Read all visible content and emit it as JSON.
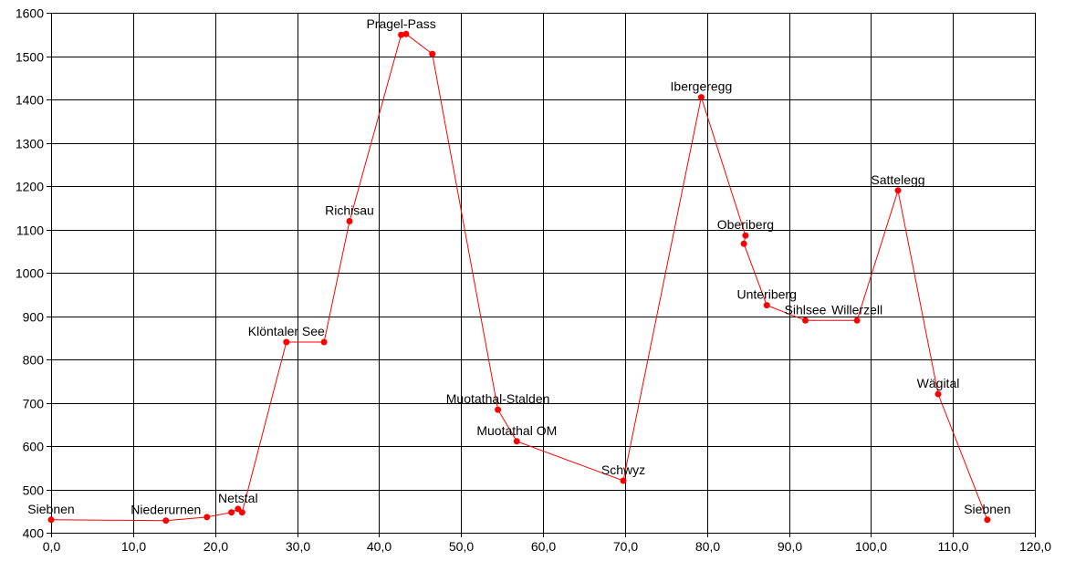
{
  "chart_data": {
    "type": "line",
    "xlim": [
      0,
      120
    ],
    "ylim": [
      400,
      1600
    ],
    "x_ticks": [
      "0,0",
      "10,0",
      "20,0",
      "30,0",
      "40,0",
      "50,0",
      "60,0",
      "70,0",
      "80,0",
      "90,0",
      "100,0",
      "110,0",
      "120,0"
    ],
    "y_ticks": [
      "400",
      "500",
      "600",
      "700",
      "800",
      "900",
      "1000",
      "1100",
      "1200",
      "1300",
      "1400",
      "1500",
      "1600"
    ],
    "grid": true,
    "line_color": "#ff0000",
    "marker_color": "#ff0000",
    "points": [
      {
        "x": 0.0,
        "y": 430,
        "label": "Siebnen"
      },
      {
        "x": 14.0,
        "y": 428,
        "label": "Niederurnen"
      },
      {
        "x": 19.0,
        "y": 436,
        "label": ""
      },
      {
        "x": 22.0,
        "y": 447,
        "label": ""
      },
      {
        "x": 22.8,
        "y": 455,
        "label": "Netstal"
      },
      {
        "x": 23.3,
        "y": 447,
        "label": ""
      },
      {
        "x": 28.7,
        "y": 840,
        "label": "Klöntaler See"
      },
      {
        "x": 33.3,
        "y": 840,
        "label": ""
      },
      {
        "x": 36.4,
        "y": 1119,
        "label": "Richisau"
      },
      {
        "x": 42.7,
        "y": 1549,
        "label": "Pragel-Pass"
      },
      {
        "x": 43.3,
        "y": 1551,
        "label": ""
      },
      {
        "x": 46.5,
        "y": 1505,
        "label": ""
      },
      {
        "x": 54.5,
        "y": 684,
        "label": "Muotathal-Stalden"
      },
      {
        "x": 56.8,
        "y": 611,
        "label": "Muotathal OM"
      },
      {
        "x": 69.8,
        "y": 520,
        "label": "Schwyz"
      },
      {
        "x": 79.3,
        "y": 1405,
        "label": "Ibergeregg"
      },
      {
        "x": 84.7,
        "y": 1086,
        "label": "Oberiberg"
      },
      {
        "x": 84.5,
        "y": 1067,
        "label": ""
      },
      {
        "x": 87.3,
        "y": 925,
        "label": "Unteriberg"
      },
      {
        "x": 92.0,
        "y": 890,
        "label": "Sihlsee"
      },
      {
        "x": 98.3,
        "y": 890,
        "label": "Willerzell"
      },
      {
        "x": 103.3,
        "y": 1190,
        "label": "Sattelegg"
      },
      {
        "x": 108.2,
        "y": 720,
        "label": "Wägital"
      },
      {
        "x": 114.2,
        "y": 430,
        "label": "Siebnen"
      }
    ]
  }
}
